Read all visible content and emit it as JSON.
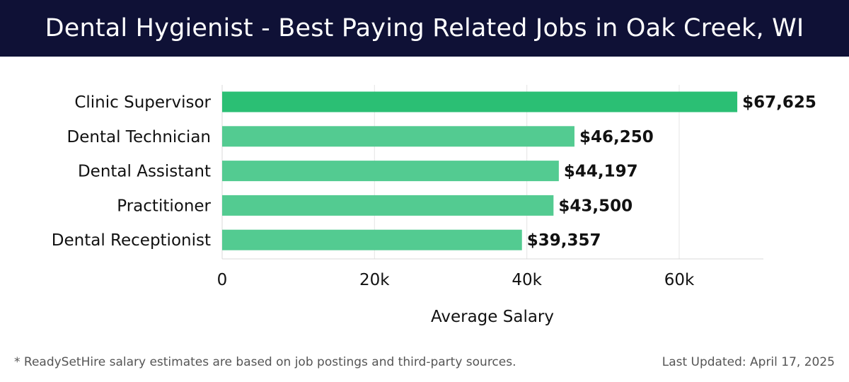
{
  "header": {
    "title": "Dental Hygienist - Best Paying Related Jobs in Oak Creek, WI"
  },
  "chart_data": {
    "type": "bar",
    "orientation": "horizontal",
    "categories": [
      "Clinic Supervisor",
      "Dental Technician",
      "Dental Assistant",
      "Practitioner",
      "Dental Receptionist"
    ],
    "values": [
      67625,
      46250,
      44197,
      43500,
      39357
    ],
    "value_labels": [
      "$67,625",
      "$46,250",
      "$44,197",
      "$43,500",
      "$39,357"
    ],
    "xlabel": "Average Salary",
    "xlim": [
      0,
      71000
    ],
    "xticks": [
      0,
      20000,
      40000,
      60000
    ],
    "xtick_labels": [
      "0",
      "20k",
      "40k",
      "60k"
    ],
    "grid": "vertical",
    "colors": {
      "highlight": "#2bbf74",
      "bar": "#53cb91",
      "grid": "#e5e5e5"
    }
  },
  "footer": {
    "note": "* ReadySetHire salary estimates are based on job postings and third-party sources.",
    "updated": "Last Updated: April 17, 2025"
  }
}
